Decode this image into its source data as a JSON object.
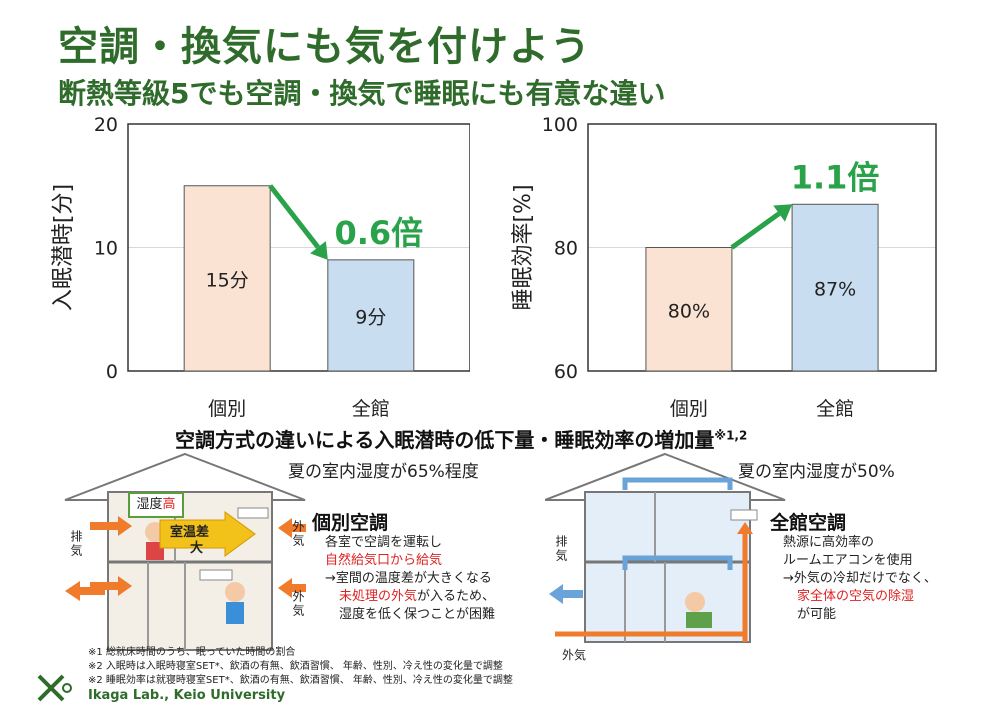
{
  "title": "空調・換気にも気を付けよう",
  "subtitle": "断熱等級5でも空調・換気で睡眠にも有意な違い",
  "chart_data": [
    {
      "type": "bar",
      "ylabel": "入眠潜時[分]",
      "ylim": [
        0,
        20
      ],
      "yticks": [
        "0",
        "10",
        "20"
      ],
      "categories": [
        "個別",
        "全館"
      ],
      "values": [
        15,
        9
      ],
      "value_labels": [
        "15分",
        "9分"
      ],
      "ratio_label": "0.6倍",
      "grid": true
    },
    {
      "type": "bar",
      "ylabel": "睡眠効率[%]",
      "ylim": [
        60,
        100
      ],
      "yticks": [
        "60",
        "80",
        "100"
      ],
      "categories": [
        "個別",
        "全館"
      ],
      "values": [
        80,
        87
      ],
      "value_labels": [
        "80%",
        "87%"
      ],
      "ratio_label": "1.1倍",
      "grid": true
    }
  ],
  "caption": {
    "text": "空調方式の違いによる入眠潜時の低下量・睡眠効率の増加量",
    "sup": "※1,2"
  },
  "left_house": {
    "humidity": "夏の室内湿度が65%程度",
    "badge_prefix": "湿度",
    "badge_accent": "高",
    "arrow_label_1": "室温差",
    "arrow_label_2": "大",
    "exhaust_label": "排気",
    "outside_label_top": "外気",
    "outside_label_bottom": "外気",
    "system_title": "個別空調",
    "desc": [
      {
        "text": "各室で空調を運転し",
        "red": false
      },
      {
        "text": "自然給気口から給気",
        "red": true
      },
      {
        "text": "→室間の温度差が大きくなる",
        "red": false
      },
      {
        "text": "未処理の外気",
        "red": true,
        "suffix": "が入るため、"
      },
      {
        "text": "湿度を低く保つことが困難",
        "red": false
      }
    ]
  },
  "right_house": {
    "humidity": "夏の室内湿度が50%",
    "exhaust_label": "排気",
    "outside_label": "外気",
    "system_title": "全館空調",
    "desc": [
      {
        "text": "熱源に高効率の",
        "red": false
      },
      {
        "text": "ルームエアコンを使用",
        "red": false
      },
      {
        "text": "→外気の冷却だけでなく、",
        "red": false
      },
      {
        "text": "家全体の空気の除湿",
        "red": true
      },
      {
        "text": "が可能",
        "red": false
      }
    ]
  },
  "footnotes": [
    "※1 総就床時間のうち、眠っていた時間の割合",
    "※2 入眠時は入眠時寝室SET*、飲酒の有無、飲酒習慣、 年齢、性別、冷え性の変化量で調整",
    "※2 睡眠効率は就寝時寝室SET*、飲酒の有無、飲酒習慣、 年齢、性別、冷え性の変化量で調整"
  ],
  "lab": "Ikaga Lab., Keio University",
  "colors": {
    "title_green": "#2f6b2a",
    "arrow_green": "#2aa24a",
    "bar_individual": "#fbe3d3",
    "bar_central": "#c9ddf0",
    "accent_red": "#d22222",
    "duct_blue": "#6aa3d8",
    "orange": "#f07b2a"
  }
}
